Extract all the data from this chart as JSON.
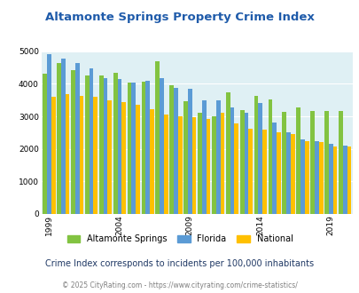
{
  "title": "Altamonte Springs Property Crime Index",
  "years": [
    1999,
    2000,
    2001,
    2002,
    2003,
    2004,
    2005,
    2006,
    2007,
    2008,
    2009,
    2010,
    2011,
    2012,
    2013,
    2014,
    2015,
    2016,
    2017,
    2018,
    2019,
    2020
  ],
  "altamonte": [
    4300,
    4650,
    4430,
    4250,
    4250,
    4340,
    4050,
    4070,
    4680,
    3950,
    3460,
    3100,
    2990,
    3750,
    3200,
    3630,
    3530,
    3130,
    3260,
    3160,
    3160,
    3160
  ],
  "florida": [
    4900,
    4770,
    4650,
    4480,
    4170,
    4160,
    4030,
    4100,
    4170,
    3870,
    3850,
    3490,
    3500,
    3280,
    3120,
    3400,
    2820,
    2510,
    2280,
    2240,
    2150,
    2100
  ],
  "national": [
    3600,
    3670,
    3640,
    3600,
    3500,
    3440,
    3360,
    3230,
    3050,
    2990,
    2970,
    2920,
    3110,
    2780,
    2630,
    2600,
    2520,
    2460,
    2240,
    2210,
    2080,
    2060
  ],
  "color_altamonte": "#82c341",
  "color_florida": "#5b9bd5",
  "color_national": "#ffc000",
  "bg_color": "#dff0f4",
  "title_color": "#1f5baa",
  "subtitle": "Crime Index corresponds to incidents per 100,000 inhabitants",
  "footer": "© 2025 CityRating.com - https://www.cityrating.com/crime-statistics/",
  "subtitle_color": "#1f3864",
  "footer_color": "#7f7f7f",
  "ylim": [
    0,
    5000
  ],
  "yticks": [
    0,
    1000,
    2000,
    3000,
    4000,
    5000
  ],
  "xlabel_years": [
    1999,
    2004,
    2009,
    2014,
    2019
  ],
  "figsize": [
    4.06,
    3.3
  ],
  "dpi": 100
}
